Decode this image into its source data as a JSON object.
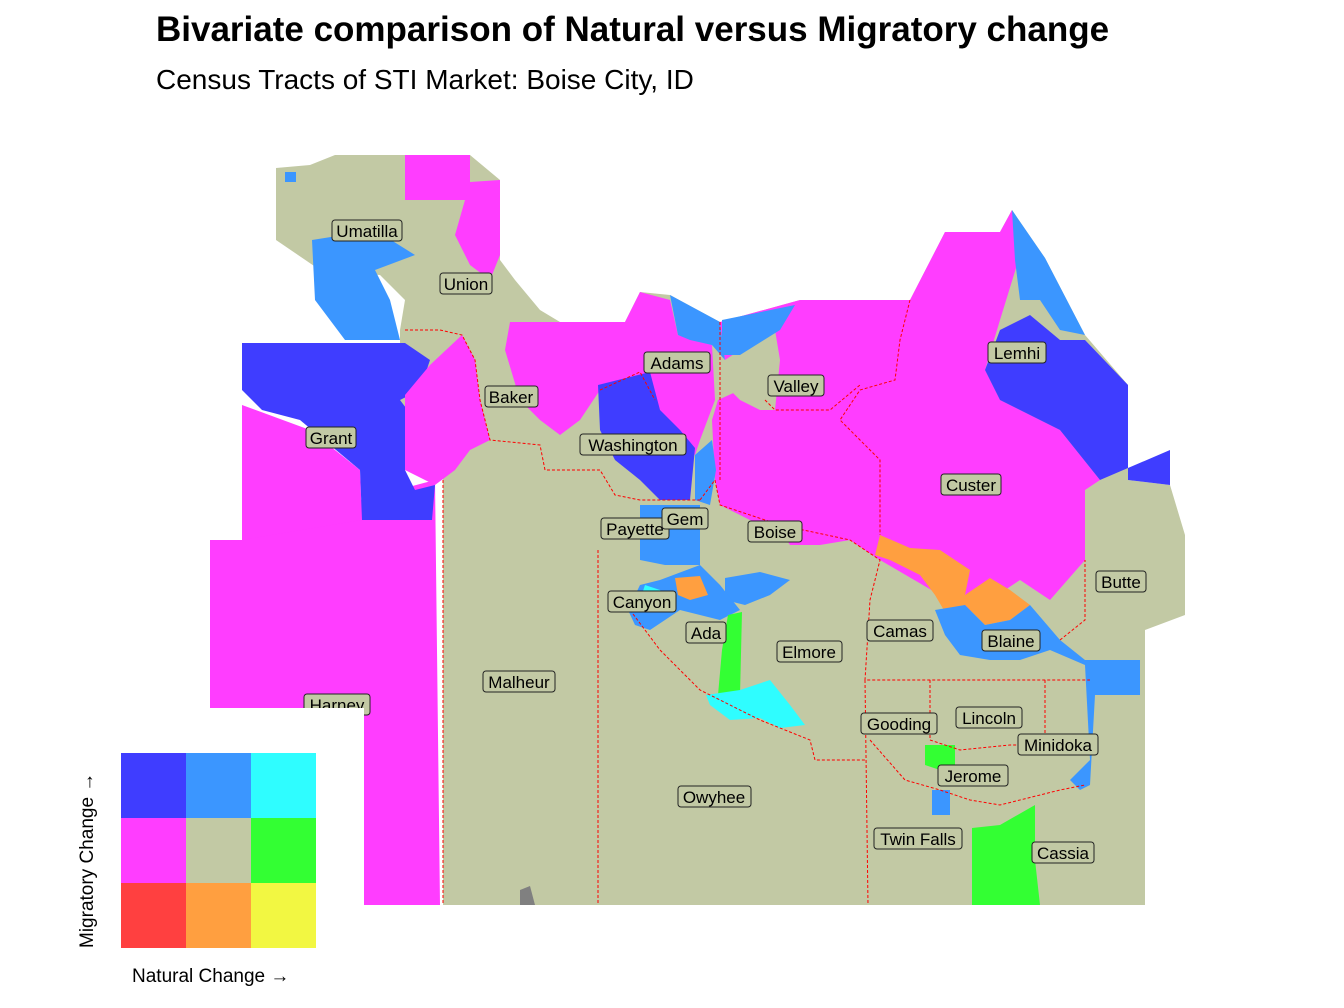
{
  "title": "Bivariate comparison of Natural versus Migratory change",
  "subtitle": "Census Tracts of STI Market: Boise City, ID",
  "colors": {
    "background_beige": "#c2c9a4",
    "magenta": "#ff3dff",
    "blue_dark": "#3f3dff",
    "blue_mid": "#3b96ff",
    "cyan": "#2ffdff",
    "green": "#33ff33",
    "orange": "#ff9f40",
    "red": "#ff4040",
    "yellow": "#f2f742",
    "boundary": "#ff0000"
  },
  "counties": [
    "Umatilla",
    "Union",
    "Baker",
    "Grant",
    "Adams",
    "Valley",
    "Lemhi",
    "Washington",
    "Custer",
    "Payette",
    "Gem",
    "Boise",
    "Butte",
    "Canyon",
    "Ada",
    "Camas",
    "Blaine",
    "Elmore",
    "Malheur",
    "Harney",
    "Gooding",
    "Lincoln",
    "Minidoka",
    "Jerome",
    "Owyhee",
    "Twin Falls",
    "Cassia"
  ],
  "legend": {
    "x_label": "Natural Change →",
    "y_label": "Migratory Change →",
    "rows": [
      [
        "#3f3dff",
        "#3b96ff",
        "#2ffdff"
      ],
      [
        "#ff3dff",
        "#c2c9a4",
        "#33ff33"
      ],
      [
        "#ff4040",
        "#ff9f40",
        "#f2f742"
      ]
    ]
  }
}
